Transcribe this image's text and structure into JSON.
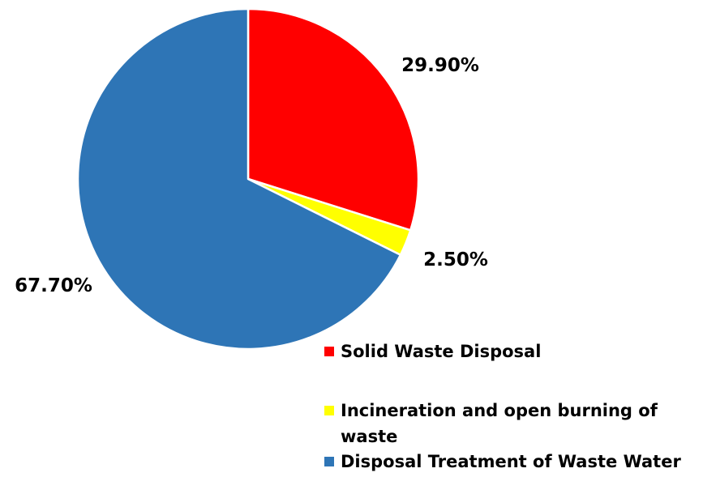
{
  "chart_data": {
    "type": "pie",
    "categories": [
      "Solid Waste Disposal",
      "Incineration and open burning of waste",
      "Disposal Treatment of Waste Water"
    ],
    "values": [
      29.9,
      2.5,
      67.7
    ],
    "data_labels": [
      "29.90%",
      "2.50%",
      "67.70%"
    ],
    "colors": [
      "#ff0000",
      "#ffff00",
      "#2e75b6"
    ],
    "start_angle_deg": 0,
    "direction": "clockwise",
    "legend_position": "bottom-right",
    "legend": {
      "items": [
        {
          "label": "Solid Waste Disposal",
          "color": "#ff0000"
        },
        {
          "label": "Incineration and open burning of waste",
          "color": "#ffff00"
        },
        {
          "label": "Disposal Treatment of Waste Water",
          "color": "#2e75b6"
        }
      ]
    }
  }
}
